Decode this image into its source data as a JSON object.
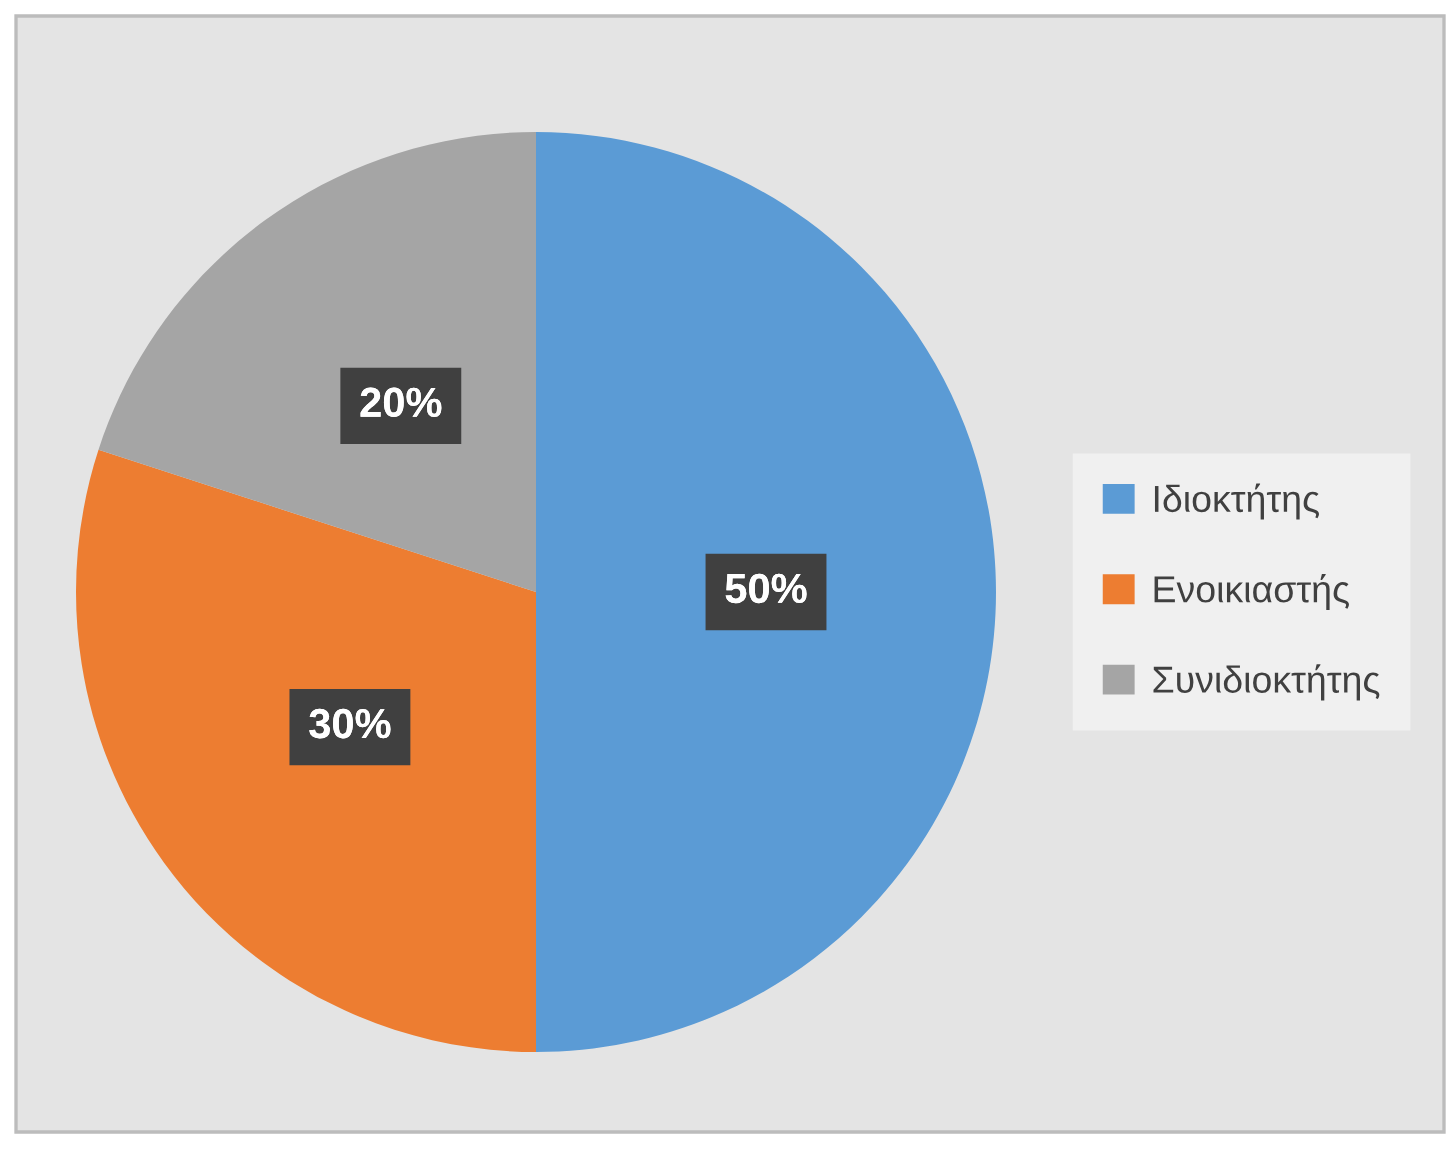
{
  "chart_data": {
    "type": "pie",
    "categories": [
      "Ιδιοκτήτης",
      "Ενοικιαστής",
      "Συνιδιοκτήτης"
    ],
    "values": [
      50,
      30,
      20
    ],
    "colors": [
      "#5b9bd5",
      "#ed7d31",
      "#a5a5a5"
    ],
    "value_labels": [
      "50%",
      "30%",
      "20%"
    ],
    "legend": "right"
  }
}
